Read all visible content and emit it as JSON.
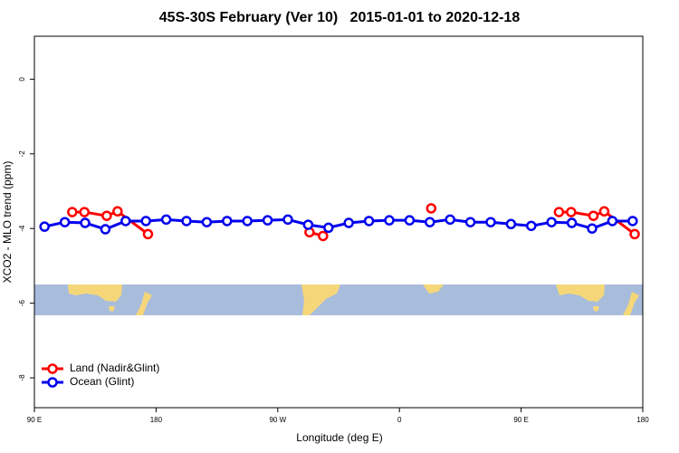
{
  "chart_data": {
    "type": "line",
    "title": "45S-30S February (Ver 10)   2015-01-01 to 2020-12-18",
    "x_label": "Longitude (deg E)",
    "y_label": "XCO2 - MLO trend (ppm)",
    "xlim": [
      90,
      540
    ],
    "ylim": [
      -8.8,
      1.15
    ],
    "xticks": [
      {
        "value": 90,
        "label": "90 E"
      },
      {
        "value": 180,
        "label": "180"
      },
      {
        "value": 270,
        "label": "90 W"
      },
      {
        "value": 360,
        "label": "0"
      },
      {
        "value": 450,
        "label": "90 E"
      },
      {
        "value": 540,
        "label": "180"
      }
    ],
    "yticks": [
      0,
      -2,
      -4,
      -6,
      -8
    ],
    "legend": "bottom-left",
    "series": [
      {
        "name": "Land (Nadir&Glint)",
        "color": "#ff0000",
        "x": [
          118,
          127,
          143.5,
          151.5,
          174,
          234,
          293.5,
          303.5,
          343,
          383.5,
          430,
          478,
          487,
          503.5,
          511.5,
          534
        ],
        "values": [
          -3.56,
          -3.56,
          -3.66,
          -3.54,
          -4.15,
          null,
          -4.1,
          -4.2,
          null,
          -3.46,
          null,
          -3.56,
          -3.56,
          -3.66,
          -3.54,
          -4.15
        ]
      },
      {
        "name": "Ocean (Glint)",
        "color": "#0000ee",
        "x": [
          97.5,
          112.5,
          127.5,
          142.5,
          157.5,
          172.5,
          187.5,
          202.5,
          217.5,
          232.5,
          247.5,
          262.5,
          277.5,
          292.5,
          307.5,
          322.5,
          337.5,
          352.5,
          367.5,
          382.5,
          397.5,
          412.5,
          427.5,
          442.5,
          457.5,
          472.5,
          487.5,
          502.5,
          517.5,
          532.5
        ],
        "values": [
          -3.95,
          -3.83,
          -3.85,
          -4.02,
          -3.8,
          -3.8,
          -3.76,
          -3.8,
          -3.83,
          -3.8,
          -3.8,
          -3.78,
          -3.76,
          -3.9,
          -3.98,
          -3.85,
          -3.8,
          -3.78,
          -3.78,
          -3.83,
          -3.76,
          -3.83,
          -3.83,
          -3.88,
          -3.93,
          -3.83,
          -3.85,
          -4.0,
          -3.8,
          -3.8
        ]
      }
    ]
  }
}
